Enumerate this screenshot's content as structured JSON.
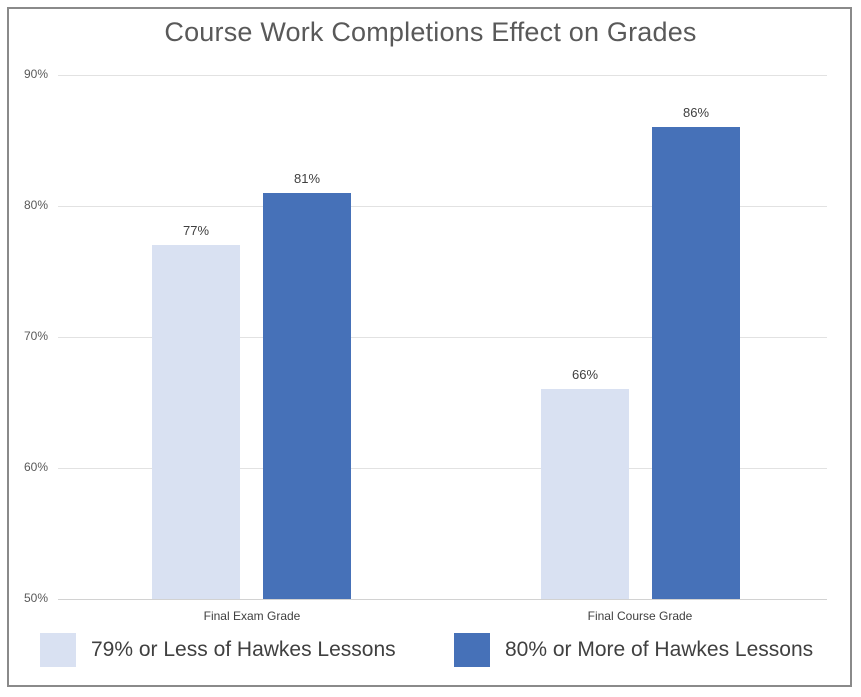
{
  "page": {
    "background": "#ffffff",
    "frame_border_color": "#8a8a8a"
  },
  "chart_data": {
    "type": "bar",
    "title": "Course Work Completions Effect on Grades",
    "categories": [
      "Final Exam Grade",
      "Final Course Grade"
    ],
    "series": [
      {
        "name": "79% or Less of Hawkes Lessons",
        "values": [
          77,
          66
        ],
        "labels": [
          "77%",
          "66%"
        ],
        "color": "#d9e1f2"
      },
      {
        "name": "80% or More of Hawkes Lessons",
        "values": [
          81,
          86
        ],
        "labels": [
          "81%",
          "86%"
        ],
        "color": "#4671b8"
      }
    ],
    "xlabel": "",
    "ylabel": "",
    "ylim": [
      50,
      90
    ],
    "yticks": [
      {
        "value": 90,
        "label": "90%"
      },
      {
        "value": 80,
        "label": "80%"
      },
      {
        "value": 70,
        "label": "70%"
      },
      {
        "value": 60,
        "label": "60%"
      },
      {
        "value": 50,
        "label": "50%"
      }
    ],
    "grid": true,
    "legend_position": "bottom",
    "colors": {
      "gridline": "#e2e2e2",
      "axis_line": "#d2d2d2",
      "title": "#595959",
      "tick_label": "#595959",
      "category_label": "#404040",
      "data_label": "#404040",
      "legend_label": "#404040"
    }
  }
}
